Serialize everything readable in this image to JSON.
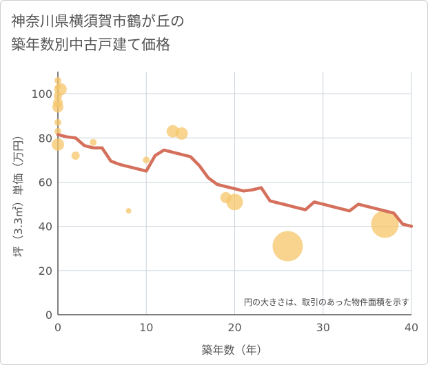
{
  "title_lines": [
    "神奈川県横須賀市鶴が丘の",
    "築年数別中古戸建て価格"
  ],
  "chart_data": {
    "type": "scatter+line",
    "title": "神奈川県横須賀市鶴が丘の築年数別中古戸建て価格",
    "xlabel": "築年数（年）",
    "ylabel": "坪（3.3㎡）単価（万円）",
    "xlim": [
      0,
      40
    ],
    "ylim": [
      0,
      110
    ],
    "xticks": [
      0,
      10,
      20,
      30,
      40
    ],
    "yticks": [
      0,
      20,
      40,
      60,
      80,
      100
    ],
    "grid": true,
    "note": "円の大きさは、取引のあった物件面積を示す",
    "colors": {
      "bubble": "#f5c56a",
      "line": "#d4705c",
      "grid": "#c9d3dd",
      "axis": "#555555"
    },
    "scatter": [
      {
        "x": 0,
        "y": 106,
        "size": 5
      },
      {
        "x": 0,
        "y": 103,
        "size": 4
      },
      {
        "x": 0.3,
        "y": 102,
        "size": 9
      },
      {
        "x": 0,
        "y": 99,
        "size": 6
      },
      {
        "x": 0,
        "y": 96,
        "size": 7
      },
      {
        "x": 0,
        "y": 94,
        "size": 8
      },
      {
        "x": 0,
        "y": 87,
        "size": 5
      },
      {
        "x": 0,
        "y": 83,
        "size": 5
      },
      {
        "x": 0,
        "y": 77,
        "size": 9
      },
      {
        "x": 2,
        "y": 72,
        "size": 6
      },
      {
        "x": 4,
        "y": 78,
        "size": 5
      },
      {
        "x": 8,
        "y": 47,
        "size": 4
      },
      {
        "x": 10,
        "y": 70,
        "size": 5
      },
      {
        "x": 13,
        "y": 83,
        "size": 9
      },
      {
        "x": 14,
        "y": 82,
        "size": 9
      },
      {
        "x": 19,
        "y": 53,
        "size": 8
      },
      {
        "x": 20,
        "y": 51,
        "size": 12
      },
      {
        "x": 26,
        "y": 31,
        "size": 22
      },
      {
        "x": 37,
        "y": 41,
        "size": 20
      }
    ],
    "line": {
      "x": [
        0,
        1,
        2,
        3,
        4,
        5,
        6,
        7,
        8,
        9,
        10,
        11,
        12,
        13,
        14,
        15,
        16,
        17,
        18,
        19,
        20,
        21,
        22,
        23,
        24,
        25,
        26,
        27,
        28,
        29,
        30,
        31,
        32,
        33,
        34,
        35,
        36,
        37,
        38,
        39,
        40
      ],
      "y": [
        81.5,
        80.5,
        80,
        76.5,
        75.5,
        75.5,
        69.5,
        68,
        67,
        66,
        65,
        72,
        74.5,
        73.5,
        72.5,
        71.5,
        67.5,
        62,
        59,
        58,
        57,
        56,
        56.5,
        57.5,
        51.5,
        50.5,
        49.5,
        48.5,
        47.5,
        51,
        50,
        49,
        48,
        47,
        50,
        49,
        48,
        47,
        46,
        41,
        40
      ]
    }
  }
}
